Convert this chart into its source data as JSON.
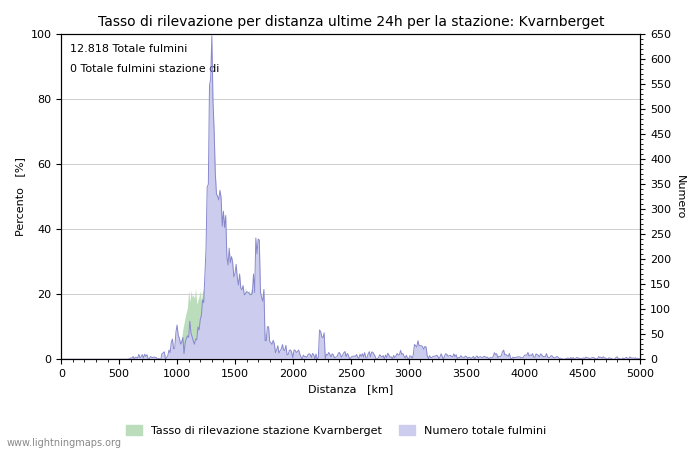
{
  "title": "Tasso di rilevazione per distanza ultime 24h per la stazione: Kvarnberget",
  "xlabel": "Distanza   [km]",
  "ylabel_left": "Percento   [%]",
  "ylabel_right": "Numero",
  "annotation_line1": "12.818 Totale fulmini",
  "annotation_line2": "0 Totale fulmini stazione di",
  "xlim": [
    0,
    5000
  ],
  "ylim_left": [
    0,
    100
  ],
  "ylim_right": [
    0,
    650
  ],
  "xticks": [
    0,
    500,
    1000,
    1500,
    2000,
    2500,
    3000,
    3500,
    4000,
    4500,
    5000
  ],
  "yticks_left": [
    0,
    20,
    40,
    60,
    80,
    100
  ],
  "yticks_right": [
    0,
    50,
    100,
    150,
    200,
    250,
    300,
    350,
    400,
    450,
    500,
    550,
    600,
    650
  ],
  "legend_label_green": "Tasso di rilevazione stazione Kvarnberget",
  "legend_label_blue": "Numero totale fulmini",
  "watermark": "www.lightningmaps.org",
  "line_color": "#8888cc",
  "fill_color_blue": "#ccccee",
  "fill_color_green": "#bbddbb",
  "background_color": "#ffffff",
  "grid_color": "#bbbbbb",
  "title_fontsize": 10,
  "axis_fontsize": 8,
  "tick_fontsize": 8,
  "annotation_fontsize": 8
}
